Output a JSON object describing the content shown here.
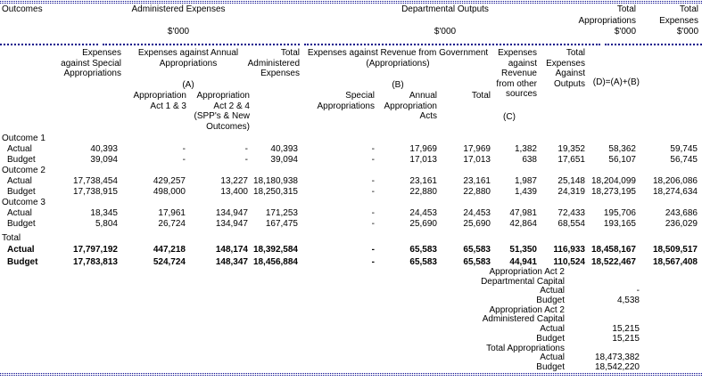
{
  "title_row": {
    "outcomes": "Outcomes",
    "administered_expenses": "Administered Expenses",
    "departmental_outputs": "Departmental Outputs",
    "thousands": "$'000",
    "total_appropriations_header": "Total Appropriations $'000",
    "total_expenses_header": "Total Expenses $'000"
  },
  "column_headers": {
    "expenses_special": "Expenses against Special Appropriations",
    "expenses_annual": "Expenses against Annual Appropriations",
    "a_label": "(A)",
    "approp_act_1_3": "Appropriation Act 1 & 3",
    "approp_act_2_4": "Appropriation Act 2 & 4 (SPP's & New Outcomes)",
    "total_administered": "Total Administered Expenses",
    "expenses_rev_gov": "Expenses against Revenue from Government (Appropriations)",
    "b_label": "(B)",
    "special_appropriations": "Special Appropriations",
    "annual_appropriation_acts": "Annual Appropriation Acts",
    "total_label": "Total",
    "expenses_rev_other": "Expenses against Revenue from other sources",
    "c_label": "(C)",
    "total_expenses_outputs": "Total Expenses Against Outputs",
    "formula": "(D)=(A)+(B)"
  },
  "colors": {
    "rule": "#00008b",
    "text": "#000000",
    "background": "#ffffff"
  },
  "table": {
    "rows": [
      {
        "type": "section",
        "label": "Outcome 1"
      },
      {
        "type": "data",
        "label": "Actual",
        "cells": [
          "40,393",
          "-",
          "-",
          "40,393",
          "-",
          "17,969",
          "17,969",
          "1,382",
          "19,352",
          "58,362",
          "59,745"
        ]
      },
      {
        "type": "data",
        "label": "Budget",
        "cells": [
          "39,094",
          "-",
          "-",
          "39,094",
          "-",
          "17,013",
          "17,013",
          "638",
          "17,651",
          "56,107",
          "56,745"
        ]
      },
      {
        "type": "section",
        "label": "Outcome 2"
      },
      {
        "type": "data",
        "label": "Actual",
        "cells": [
          "17,738,454",
          "429,257",
          "13,227",
          "18,180,938",
          "-",
          "23,161",
          "23,161",
          "1,987",
          "25,148",
          "18,204,099",
          "18,206,086"
        ]
      },
      {
        "type": "data",
        "label": "Budget",
        "cells": [
          "17,738,915",
          "498,000",
          "13,400",
          "18,250,315",
          "-",
          "22,880",
          "22,880",
          "1,439",
          "24,319",
          "18,273,195",
          "18,274,634"
        ]
      },
      {
        "type": "section",
        "label": "Outcome 3"
      },
      {
        "type": "data",
        "label": "Actual",
        "cells": [
          "18,345",
          "17,961",
          "134,947",
          "171,253",
          "-",
          "24,453",
          "24,453",
          "47,981",
          "72,433",
          "195,706",
          "243,686"
        ]
      },
      {
        "type": "data",
        "label": "Budget",
        "cells": [
          "5,804",
          "26,724",
          "134,947",
          "167,475",
          "-",
          "25,690",
          "25,690",
          "42,864",
          "68,554",
          "193,165",
          "236,029"
        ]
      },
      {
        "type": "section",
        "label": "Total"
      },
      {
        "type": "data",
        "bold": true,
        "label": "Actual",
        "cells": [
          "17,797,192",
          "447,218",
          "148,174",
          "18,392,584",
          "-",
          "65,583",
          "65,583",
          "51,350",
          "116,933",
          "18,458,167",
          "18,509,517"
        ]
      },
      {
        "type": "data",
        "bold": true,
        "label": "Budget",
        "cells": [
          "17,783,813",
          "524,724",
          "148,347",
          "18,456,884",
          "-",
          "65,583",
          "65,583",
          "44,941",
          "110,524",
          "18,522,467",
          "18,567,408"
        ]
      }
    ]
  },
  "capital_section": {
    "rows": [
      {
        "label": "Appropriation Act 2",
        "value": ""
      },
      {
        "label": "Departmental Capital",
        "value": ""
      },
      {
        "label": "Actual",
        "value": "-"
      },
      {
        "label": "Budget",
        "value": "4,538"
      },
      {
        "label": "Appropriation Act 2",
        "value": ""
      },
      {
        "label": "Administered Capital",
        "value": ""
      },
      {
        "label": "Actual",
        "value": "15,215"
      },
      {
        "label": "Budget",
        "value": "15,215"
      },
      {
        "label": "Total Appropriations",
        "value": ""
      },
      {
        "label": "Actual",
        "value": "18,473,382"
      },
      {
        "label": "Budget",
        "value": "18,542,220"
      }
    ]
  }
}
